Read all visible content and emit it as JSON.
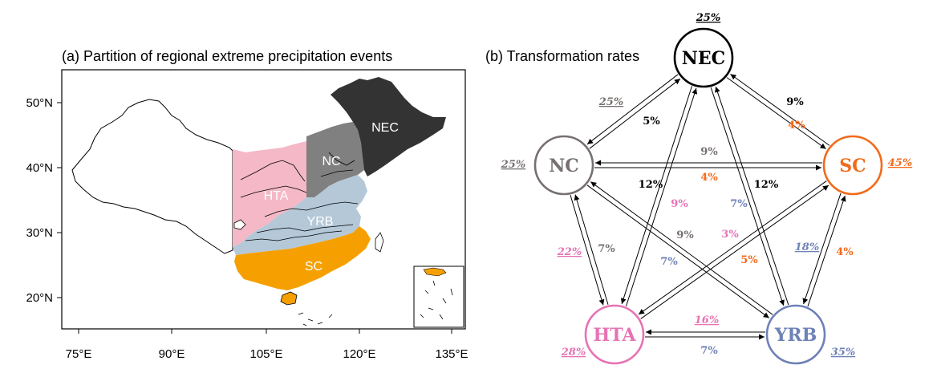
{
  "panel_a": {
    "title": "(a) Partition of regional extreme precipitation events",
    "x_ticks": [
      "75°E",
      "90°E",
      "105°E",
      "120°E",
      "135°E"
    ],
    "y_ticks": [
      "50°N",
      "40°N",
      "30°N",
      "20°N"
    ],
    "regions": {
      "NEC": {
        "label": "NEC",
        "color": "#333333"
      },
      "NC": {
        "label": "NC",
        "color": "#808080"
      },
      "HTA": {
        "label": "HTA",
        "color": "#f4b8c6"
      },
      "YRB": {
        "label": "YRB",
        "color": "#b4c8d8"
      },
      "SC": {
        "label": "SC",
        "color": "#f5a000"
      }
    }
  },
  "panel_b": {
    "title": "(b) Transformation rates",
    "nodes": [
      {
        "id": "NEC",
        "label": "NEC",
        "color": "#000000",
        "self_rate": "25%"
      },
      {
        "id": "NC",
        "label": "NC",
        "color": "#777070",
        "self_rate": "25%"
      },
      {
        "id": "SC",
        "label": "SC",
        "color": "#f26a1b",
        "self_rate": "45%"
      },
      {
        "id": "HTA",
        "label": "HTA",
        "color": "#e673b4",
        "self_rate": "28%"
      },
      {
        "id": "YRB",
        "label": "YRB",
        "color": "#6e82b7",
        "self_rate": "35%"
      }
    ],
    "rates": [
      {
        "from": "NC",
        "to": "NEC",
        "value": "25%",
        "color": "#777070",
        "underline": true,
        "italic": true
      },
      {
        "from": "NEC",
        "to": "NC",
        "value": "5%",
        "color": "#000000",
        "underline": false,
        "italic": false
      },
      {
        "from": "NEC",
        "to": "SC",
        "value": "9%",
        "color": "#000000",
        "underline": false,
        "italic": false
      },
      {
        "from": "SC",
        "to": "NEC",
        "value": "4%",
        "color": "#f26a1b",
        "underline": false,
        "italic": false
      },
      {
        "from": "NC",
        "to": "SC",
        "value": "9%",
        "color": "#777070",
        "underline": false,
        "italic": false
      },
      {
        "from": "SC",
        "to": "NC",
        "value": "4%",
        "color": "#f26a1b",
        "underline": false,
        "italic": false
      },
      {
        "from": "NEC",
        "to": "HTA",
        "value": "12%",
        "color": "#000000",
        "underline": false,
        "italic": false
      },
      {
        "from": "HTA",
        "to": "NEC",
        "value": "9%",
        "color": "#e673b4",
        "underline": false,
        "italic": false
      },
      {
        "from": "NEC",
        "to": "YRB",
        "value": "12%",
        "color": "#000000",
        "underline": false,
        "italic": false
      },
      {
        "from": "YRB",
        "to": "NEC",
        "value": "7%",
        "color": "#6e82b7",
        "underline": false,
        "italic": false
      },
      {
        "from": "NC",
        "to": "YRB",
        "value": "9%",
        "color": "#777070",
        "underline": false,
        "italic": false
      },
      {
        "from": "YRB",
        "to": "NC",
        "value": "7%",
        "color": "#6e82b7",
        "underline": false,
        "italic": false
      },
      {
        "from": "HTA",
        "to": "SC",
        "value": "3%",
        "color": "#e673b4",
        "underline": false,
        "italic": false
      },
      {
        "from": "SC",
        "to": "HTA",
        "value": "5%",
        "color": "#f26a1b",
        "underline": false,
        "italic": false
      },
      {
        "from": "HTA",
        "to": "NC",
        "value": "22%",
        "color": "#e673b4",
        "underline": true,
        "italic": true
      },
      {
        "from": "NC",
        "to": "HTA",
        "value": "7%",
        "color": "#777070",
        "underline": false,
        "italic": false
      },
      {
        "from": "YRB",
        "to": "SC",
        "value": "18%",
        "color": "#6e82b7",
        "underline": true,
        "italic": true
      },
      {
        "from": "SC",
        "to": "YRB",
        "value": "4%",
        "color": "#f26a1b",
        "underline": false,
        "italic": false
      },
      {
        "from": "HTA",
        "to": "YRB",
        "value": "16%",
        "color": "#e673b4",
        "underline": true,
        "italic": true
      },
      {
        "from": "YRB",
        "to": "HTA",
        "value": "7%",
        "color": "#6e82b7",
        "underline": false,
        "italic": false
      }
    ]
  }
}
